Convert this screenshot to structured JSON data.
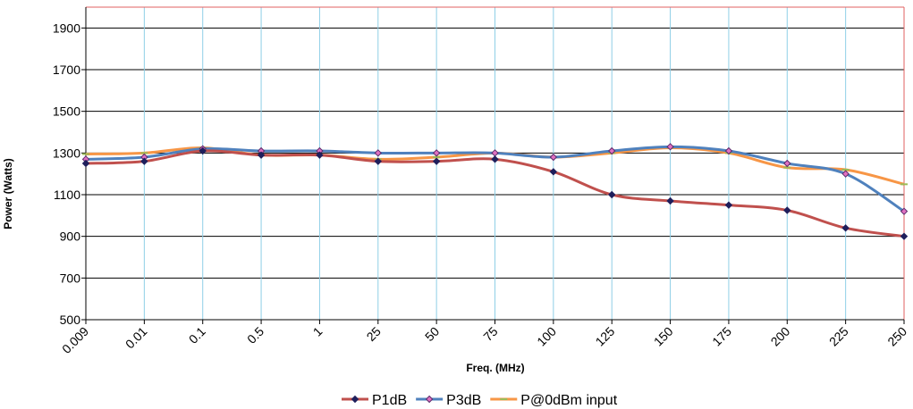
{
  "chart_data": {
    "type": "line",
    "title": "",
    "xlabel": "Freq. (MHz)",
    "ylabel": "Power (Watts)",
    "categories": [
      "0.009",
      "0.01",
      "0.1",
      "0.5",
      "1",
      "25",
      "50",
      "75",
      "100",
      "125",
      "150",
      "175",
      "200",
      "225",
      "250"
    ],
    "ylim": [
      500,
      2000
    ],
    "yticks": [
      500,
      700,
      900,
      1100,
      1300,
      1500,
      1700,
      1900
    ],
    "grid": true,
    "legend_position": "bottom",
    "series": [
      {
        "name": "P1dB",
        "color": "#c0504d",
        "marker": "diamond-dark",
        "values": [
          1250,
          1260,
          1310,
          1290,
          1290,
          1260,
          1260,
          1270,
          1210,
          1100,
          1070,
          1050,
          1025,
          940,
          900
        ]
      },
      {
        "name": "P3dB",
        "color": "#4f81bd",
        "marker": "diamond-pink",
        "values": [
          1270,
          1280,
          1320,
          1310,
          1310,
          1300,
          1300,
          1300,
          1280,
          1310,
          1330,
          1310,
          1250,
          1200,
          1020
        ]
      },
      {
        "name": "P@0dBm input",
        "color": "#f79646",
        "marker": "dash-green",
        "values": [
          1295,
          1300,
          1325,
          1290,
          1290,
          1270,
          1280,
          1300,
          1280,
          1300,
          1325,
          1300,
          1230,
          1220,
          1150
        ]
      }
    ]
  }
}
